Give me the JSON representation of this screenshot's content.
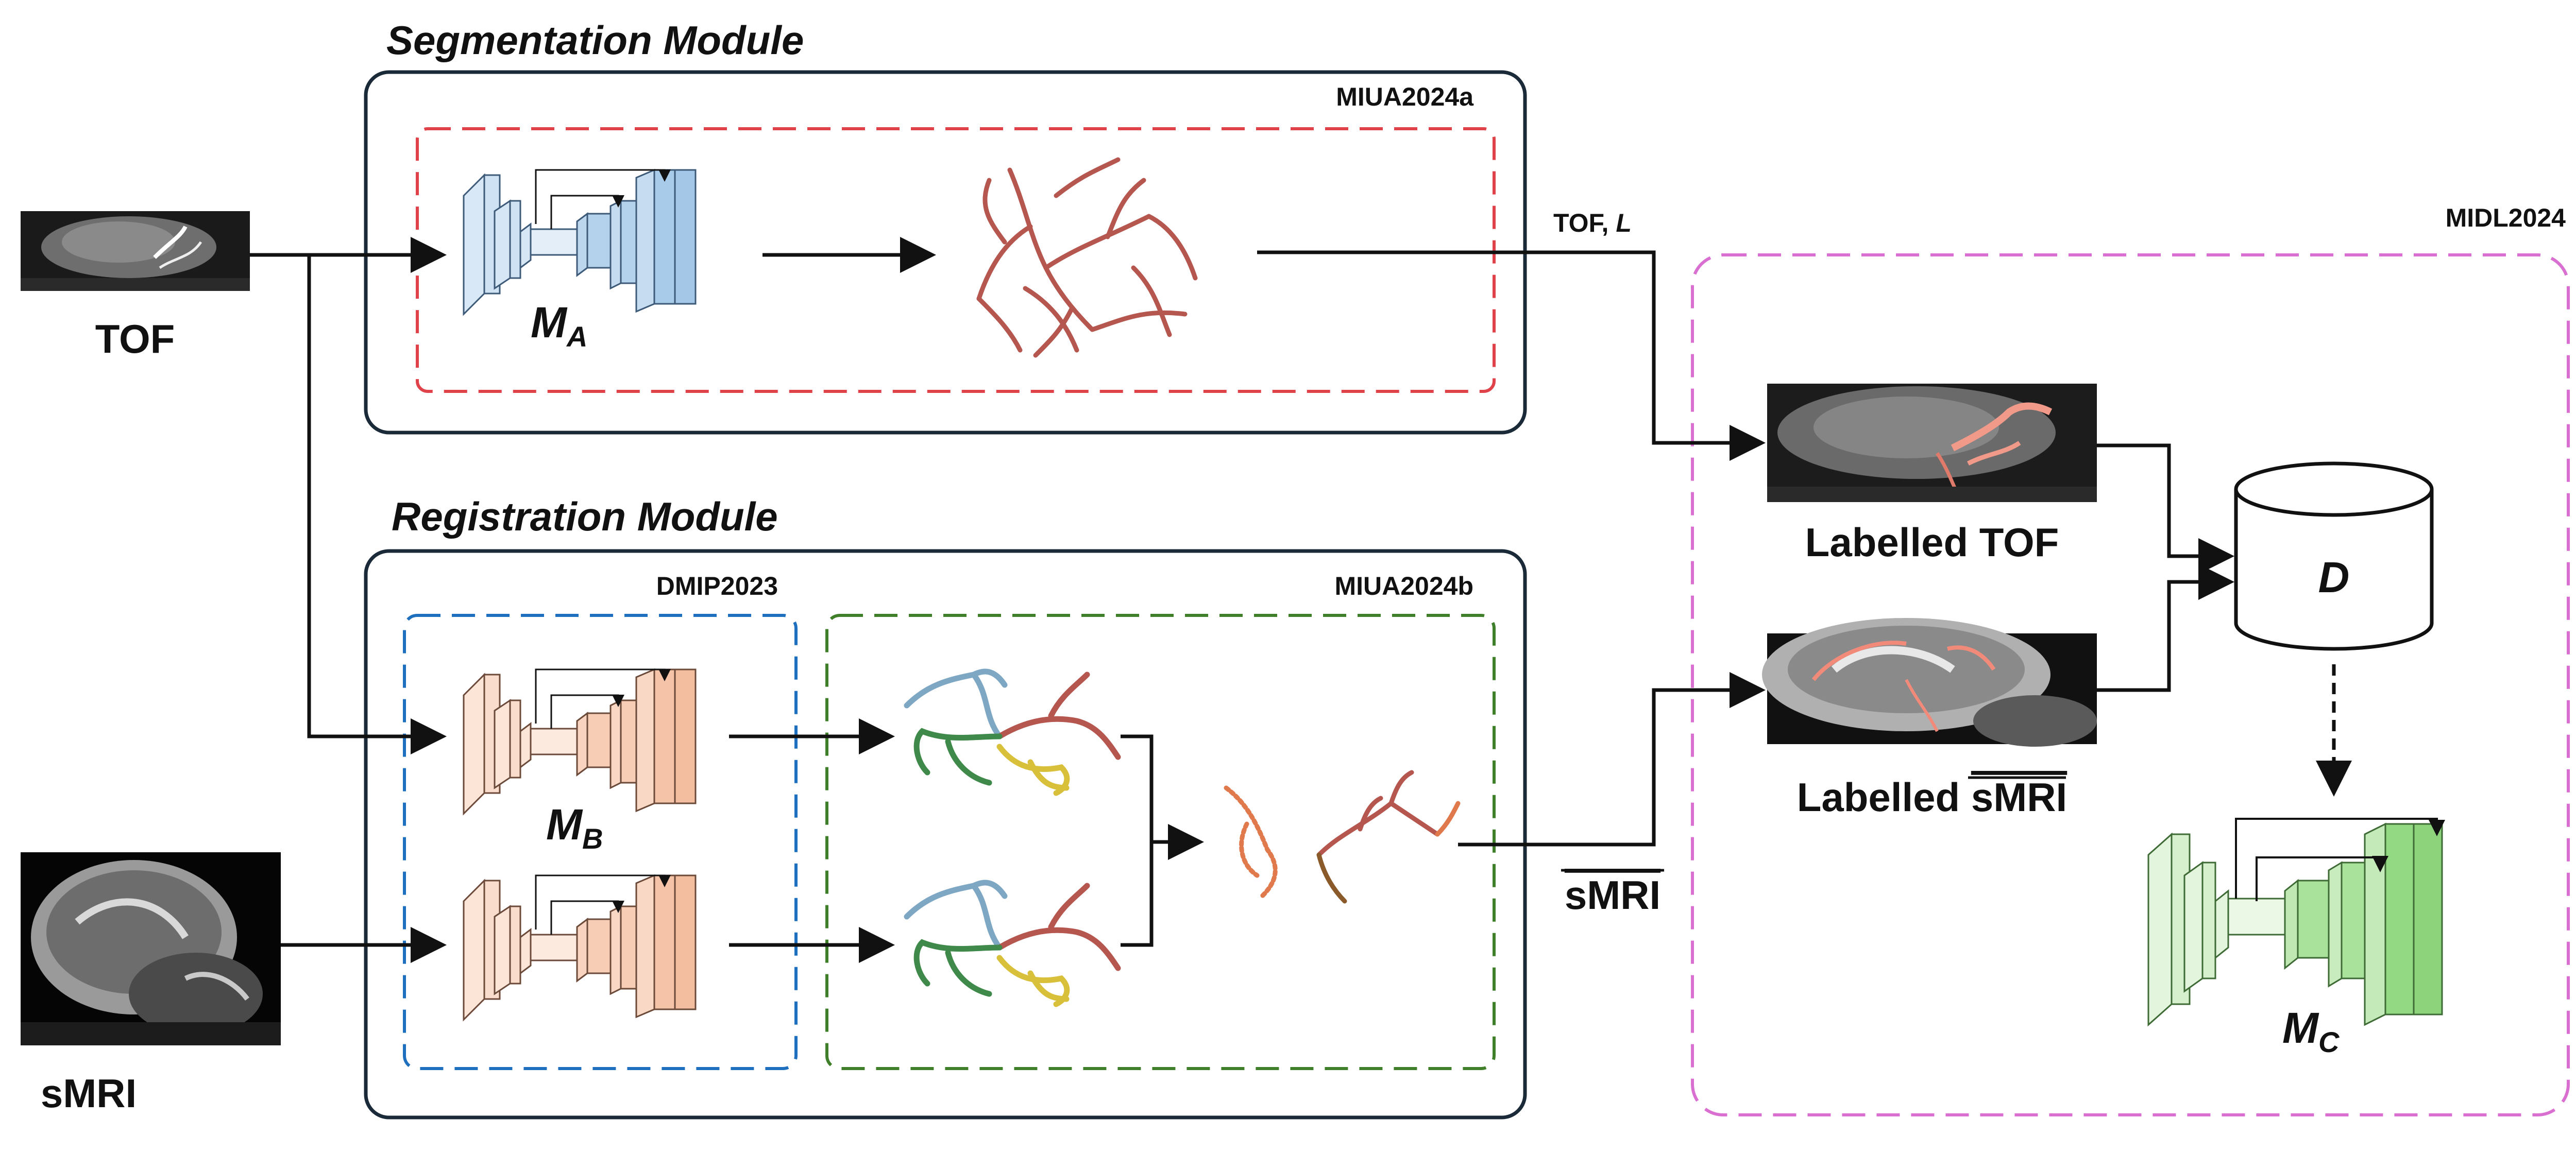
{
  "inputs": {
    "tof_label": "TOF",
    "smri_label": "sMRI"
  },
  "segmentation": {
    "title": "Segmentation Module",
    "tag": "MIUA2024a",
    "model_letter": "M",
    "model_sub": "A"
  },
  "registration": {
    "title": "Registration Module",
    "tag_left": "DMIP2023",
    "tag_right": "MIUA2024b",
    "model_letter": "M",
    "model_sub": "B"
  },
  "training": {
    "tag": "MIDL2024",
    "arrow_top_label": "TOF, ",
    "arrow_top_label_var": "L",
    "arrow_bottom_label": "sMRI",
    "labelled_tof": "Labelled TOF",
    "labelled_smri_prefix": "Labelled ",
    "labelled_smri_overlined": "sMRI",
    "dataset_letter": "D",
    "model_letter": "M",
    "model_sub": "C"
  },
  "colors": {
    "seg_box": "#e0424a",
    "reg_left_box": "#1f6fbf",
    "reg_right_box": "#3f7f2a",
    "training_box": "#d96fd0",
    "module_border": "#1b2a38",
    "net_blue": "#a9cbea",
    "net_pink": "#f7cdb6",
    "net_green": "#a9e29a",
    "vessel_red": "#b5564f"
  }
}
